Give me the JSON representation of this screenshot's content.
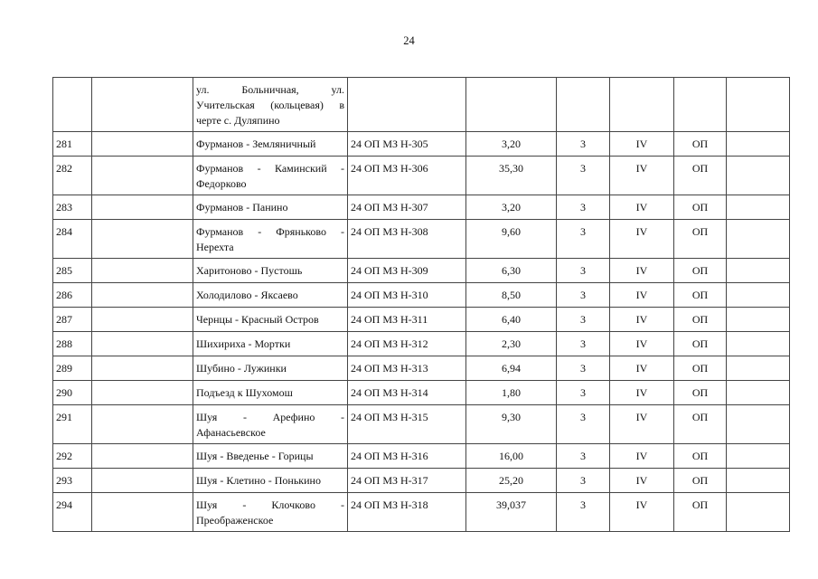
{
  "page_number": "24",
  "first_row": {
    "name": "ул. Больничная, ул. Учительская (кольцевая) в черте с. Дуляпино"
  },
  "rows": [
    {
      "no": "281",
      "name": "Фурманов - Земляничный",
      "code": "24 ОП МЗ Н-305",
      "length": "3,20",
      "cat": "3",
      "cls": "IV",
      "type": "ОП",
      "tall": false
    },
    {
      "no": "282",
      "name": "Фурманов - Каминский - Федорково",
      "code": "24 ОП МЗ Н-306",
      "length": "35,30",
      "cat": "3",
      "cls": "IV",
      "type": "ОП",
      "tall": true
    },
    {
      "no": "283",
      "name": "Фурманов - Панино",
      "code": "24 ОП МЗ Н-307",
      "length": "3,20",
      "cat": "3",
      "cls": "IV",
      "type": "ОП",
      "tall": false
    },
    {
      "no": "284",
      "name": "Фурманов - Фряньково - Нерехта",
      "code": "24 ОП МЗ Н-308",
      "length": "9,60",
      "cat": "3",
      "cls": "IV",
      "type": "ОП",
      "tall": true
    },
    {
      "no": "285",
      "name": "Харитоново - Пустошь",
      "code": "24 ОП МЗ Н-309",
      "length": "6,30",
      "cat": "3",
      "cls": "IV",
      "type": "ОП",
      "tall": false
    },
    {
      "no": "286",
      "name": "Холодилово - Яксаево",
      "code": "24 ОП МЗ Н-310",
      "length": "8,50",
      "cat": "3",
      "cls": "IV",
      "type": "ОП",
      "tall": false
    },
    {
      "no": "287",
      "name": "Чернцы - Красный Остров",
      "code": "24 ОП МЗ Н-311",
      "length": "6,40",
      "cat": "3",
      "cls": "IV",
      "type": "ОП",
      "tall": false
    },
    {
      "no": "288",
      "name": "Шихириха - Мортки",
      "code": "24 ОП МЗ Н-312",
      "length": "2,30",
      "cat": "3",
      "cls": "IV",
      "type": "ОП",
      "tall": false
    },
    {
      "no": "289",
      "name": "Шубино - Лужинки",
      "code": "24 ОП МЗ Н-313",
      "length": "6,94",
      "cat": "3",
      "cls": "IV",
      "type": "ОП",
      "tall": false
    },
    {
      "no": "290",
      "name": "Подъезд к Шухомош",
      "code": "24 ОП МЗ Н-314",
      "length": "1,80",
      "cat": "3",
      "cls": "IV",
      "type": "ОП",
      "tall": false
    },
    {
      "no": "291",
      "name": "Шуя - Арефино - Афанасьевское",
      "code": "24 ОП МЗ Н-315",
      "length": "9,30",
      "cat": "3",
      "cls": "IV",
      "type": "ОП",
      "tall": true
    },
    {
      "no": "292",
      "name": "Шуя - Введенье - Горицы",
      "code": "24 ОП МЗ Н-316",
      "length": "16,00",
      "cat": "3",
      "cls": "IV",
      "type": "ОП",
      "tall": false
    },
    {
      "no": "293",
      "name": "Шуя - Клетино - Понькино",
      "code": "24 ОП МЗ Н-317",
      "length": "25,20",
      "cat": "3",
      "cls": "IV",
      "type": "ОП",
      "tall": false
    },
    {
      "no": "294",
      "name": "Шуя - Клочково - Преображенское",
      "code": "24 ОП МЗ Н-318",
      "length": "39,037",
      "cat": "3",
      "cls": "IV",
      "type": "ОП",
      "tall": true
    }
  ]
}
